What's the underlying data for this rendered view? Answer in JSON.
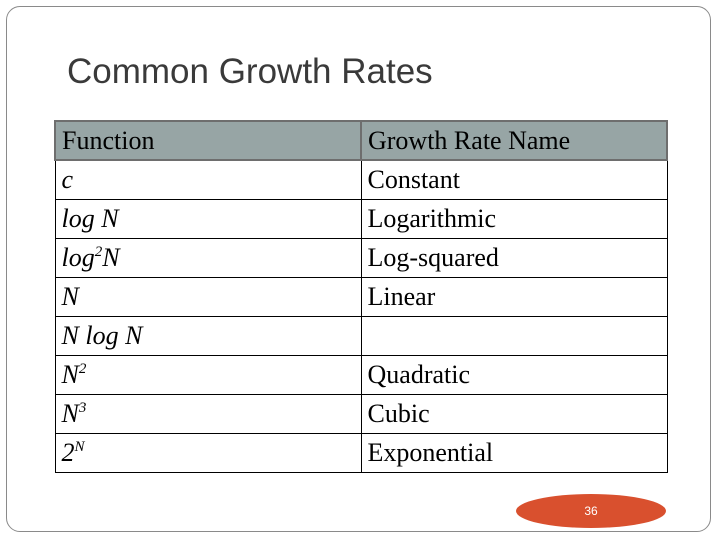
{
  "slide": {
    "title": "Common Growth Rates",
    "page_number": "36"
  },
  "table": {
    "headers": {
      "function": "Function",
      "name": "Growth Rate Name"
    },
    "rows": [
      {
        "fn_base": "c",
        "fn_sup": "",
        "fn_tail": "",
        "name": "Constant"
      },
      {
        "fn_base": "log N",
        "fn_sup": "",
        "fn_tail": "",
        "name": "Logarithmic"
      },
      {
        "fn_base": "log",
        "fn_sup": "2",
        "fn_tail": "N",
        "name": "Log-squared"
      },
      {
        "fn_base": "N",
        "fn_sup": "",
        "fn_tail": "",
        "name": "Linear"
      },
      {
        "fn_base": "N log N",
        "fn_sup": "",
        "fn_tail": "",
        "name": ""
      },
      {
        "fn_base": "N",
        "fn_sup": "2",
        "fn_tail": "",
        "name": "Quadratic"
      },
      {
        "fn_base": "N",
        "fn_sup": "3",
        "fn_tail": "",
        "name": "Cubic"
      },
      {
        "fn_base": "2",
        "fn_sup": "N",
        "fn_tail": "",
        "name": "Exponential"
      }
    ]
  },
  "colors": {
    "header_bg": "#97a5a5",
    "badge": "#d9502e",
    "title_text": "#3a3a3a"
  }
}
